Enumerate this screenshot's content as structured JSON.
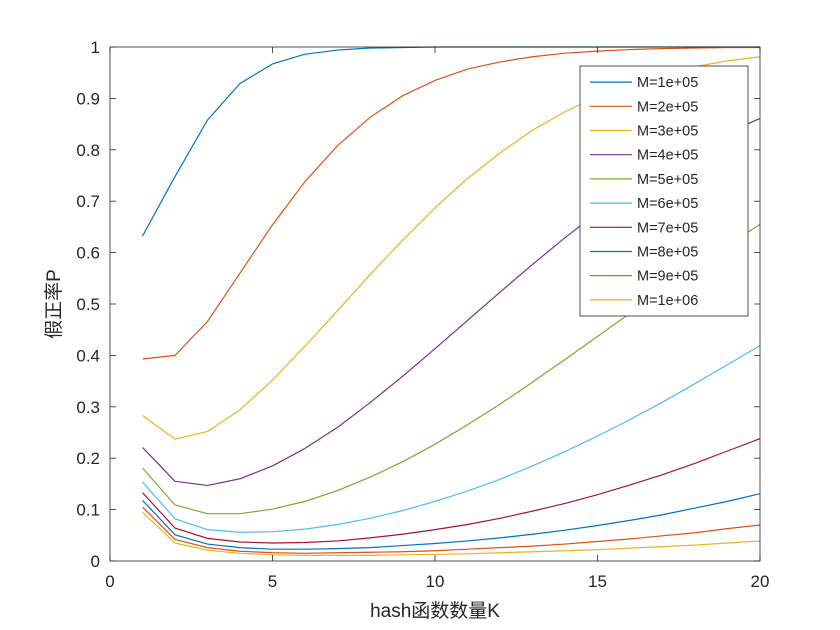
{
  "chart_data": {
    "type": "line",
    "title": "",
    "xlabel": "hash函数数量K",
    "ylabel": "假正率P",
    "xlim": [
      0,
      20
    ],
    "ylim": [
      0,
      1
    ],
    "xticks": [
      0,
      5,
      10,
      15,
      20
    ],
    "yticks": [
      0,
      0.1,
      0.2,
      0.3,
      0.4,
      0.5,
      0.6,
      0.7,
      0.8,
      0.9,
      1
    ],
    "xtick_labels": [
      "0",
      "5",
      "10",
      "15",
      "20"
    ],
    "ytick_labels": [
      "0",
      "0.1",
      "0.2",
      "0.3",
      "0.4",
      "0.5",
      "0.6",
      "0.7",
      "0.8",
      "0.9",
      "1"
    ],
    "grid": false,
    "legend_position": "top-right",
    "x": [
      1,
      2,
      3,
      4,
      5,
      6,
      7,
      8,
      9,
      10,
      11,
      12,
      13,
      14,
      15,
      16,
      17,
      18,
      19,
      20
    ],
    "series": [
      {
        "name": "M=1e+05",
        "color": "#0072BD",
        "values": [
          0.632,
          0.748,
          0.858,
          0.929,
          0.967,
          0.986,
          0.994,
          0.998,
          0.999,
          1.0,
          1.0,
          1.0,
          1.0,
          1.0,
          1.0,
          1.0,
          1.0,
          1.0,
          1.0,
          1.0
        ]
      },
      {
        "name": "M=2e+05",
        "color": "#D95319",
        "values": [
          0.393,
          0.4,
          0.466,
          0.56,
          0.654,
          0.738,
          0.808,
          0.863,
          0.905,
          0.935,
          0.957,
          0.971,
          0.981,
          0.988,
          0.992,
          0.995,
          0.997,
          0.998,
          0.999,
          0.999
        ]
      },
      {
        "name": "M=3e+05",
        "color": "#EDB120",
        "values": [
          0.283,
          0.237,
          0.252,
          0.294,
          0.352,
          0.418,
          0.487,
          0.557,
          0.624,
          0.687,
          0.744,
          0.794,
          0.838,
          0.874,
          0.904,
          0.929,
          0.947,
          0.962,
          0.973,
          0.981
        ]
      },
      {
        "name": "M=4e+05",
        "color": "#7E2F8E",
        "values": [
          0.221,
          0.155,
          0.147,
          0.16,
          0.185,
          0.219,
          0.26,
          0.308,
          0.359,
          0.413,
          0.468,
          0.523,
          0.577,
          0.629,
          0.678,
          0.723,
          0.764,
          0.801,
          0.833,
          0.861
        ]
      },
      {
        "name": "M=5e+05",
        "color": "#77AC30",
        "values": [
          0.181,
          0.109,
          0.092,
          0.092,
          0.101,
          0.116,
          0.137,
          0.163,
          0.193,
          0.227,
          0.265,
          0.305,
          0.348,
          0.392,
          0.437,
          0.482,
          0.527,
          0.571,
          0.614,
          0.655
        ]
      },
      {
        "name": "M=6e+05",
        "color": "#4DBEEE",
        "values": [
          0.154,
          0.082,
          0.061,
          0.056,
          0.057,
          0.062,
          0.071,
          0.083,
          0.098,
          0.116,
          0.136,
          0.159,
          0.185,
          0.213,
          0.243,
          0.275,
          0.309,
          0.345,
          0.382,
          0.419
        ]
      },
      {
        "name": "M=7e+05",
        "color": "#A2142F",
        "values": [
          0.133,
          0.064,
          0.044,
          0.037,
          0.035,
          0.036,
          0.039,
          0.045,
          0.052,
          0.061,
          0.071,
          0.083,
          0.097,
          0.112,
          0.129,
          0.148,
          0.168,
          0.19,
          0.214,
          0.238
        ]
      },
      {
        "name": "M=8e+05",
        "color": "#0072BD",
        "values": [
          0.118,
          0.051,
          0.033,
          0.026,
          0.023,
          0.023,
          0.024,
          0.026,
          0.03,
          0.034,
          0.039,
          0.045,
          0.052,
          0.06,
          0.069,
          0.079,
          0.09,
          0.103,
          0.116,
          0.131
        ]
      },
      {
        "name": "M=9e+05",
        "color": "#D95319",
        "values": [
          0.105,
          0.042,
          0.026,
          0.019,
          0.016,
          0.015,
          0.016,
          0.017,
          0.018,
          0.02,
          0.023,
          0.026,
          0.029,
          0.033,
          0.038,
          0.043,
          0.049,
          0.055,
          0.063,
          0.07
        ]
      },
      {
        "name": "M=1e+06",
        "color": "#EDB120",
        "values": [
          0.095,
          0.035,
          0.021,
          0.015,
          0.012,
          0.011,
          0.011,
          0.011,
          0.012,
          0.013,
          0.014,
          0.016,
          0.018,
          0.02,
          0.022,
          0.025,
          0.028,
          0.031,
          0.035,
          0.039
        ]
      }
    ]
  }
}
